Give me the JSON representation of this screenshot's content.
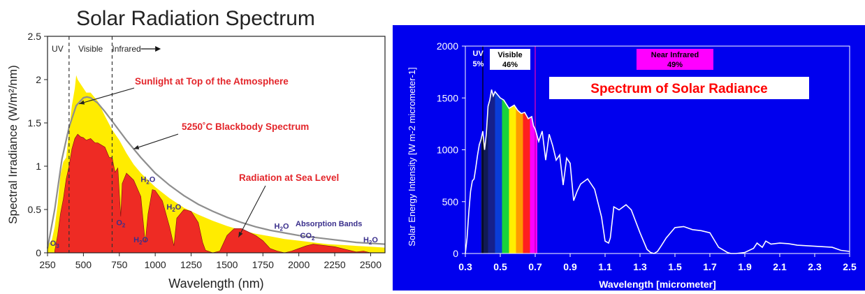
{
  "chart_data": [
    {
      "type": "area",
      "title": "Solar Radiation Spectrum",
      "xlabel": "Wavelength (nm)",
      "ylabel": "Spectral Irradiance (W/m²/nm)",
      "xlim": [
        250,
        2600
      ],
      "ylim": [
        0,
        2.5
      ],
      "xticks": [
        250,
        500,
        750,
        1000,
        1250,
        1500,
        1750,
        2000,
        2250,
        2500
      ],
      "yticks": [
        0,
        0.5,
        1,
        1.5,
        2,
        2.5
      ],
      "ytick_labels": [
        "0",
        "0.5",
        "1",
        "1.5",
        "2",
        "2.5"
      ],
      "regions": [
        {
          "label": "UV",
          "x_start": 250,
          "x_end": 400
        },
        {
          "label": "Visible",
          "x_start": 400,
          "x_end": 700
        },
        {
          "label": "Infrared",
          "x_start": 700,
          "x_end": 900
        }
      ],
      "boundaries": [
        400,
        700
      ],
      "series": [
        {
          "color": "#ffec00",
          "x": [
            250,
            280,
            300,
            320,
            340,
            360,
            380,
            400,
            420,
            440,
            450,
            460,
            480,
            500,
            520,
            550,
            600,
            650,
            700,
            750,
            800,
            850,
            900,
            1000,
            1100,
            1200,
            1300,
            1400,
            1500,
            1600,
            1700,
            1800,
            1900,
            2000,
            2100,
            2200,
            2300,
            2400,
            2500,
            2600
          ],
          "y": [
            0.08,
            0.15,
            0.3,
            0.55,
            0.9,
            1.05,
            1.1,
            1.4,
            1.7,
            1.9,
            2.05,
            2.0,
            1.95,
            1.9,
            1.85,
            1.85,
            1.75,
            1.58,
            1.42,
            1.3,
            1.15,
            1.02,
            0.92,
            0.76,
            0.63,
            0.52,
            0.44,
            0.37,
            0.31,
            0.26,
            0.22,
            0.19,
            0.16,
            0.14,
            0.12,
            0.1,
            0.09,
            0.08,
            0.07,
            0.06
          ]
        },
        {
          "color": "#8e8e8e",
          "x": [
            250,
            300,
            350,
            400,
            450,
            500,
            525,
            550,
            600,
            650,
            700,
            800,
            900,
            1000,
            1100,
            1200,
            1300,
            1400,
            1500,
            1600,
            1700,
            1800,
            1900,
            2000,
            2100,
            2200,
            2300,
            2400,
            2500,
            2600
          ],
          "y": [
            0.05,
            0.5,
            1.08,
            1.45,
            1.7,
            1.79,
            1.8,
            1.79,
            1.73,
            1.63,
            1.52,
            1.3,
            1.1,
            0.92,
            0.78,
            0.66,
            0.56,
            0.48,
            0.41,
            0.35,
            0.3,
            0.26,
            0.23,
            0.2,
            0.18,
            0.16,
            0.14,
            0.12,
            0.11,
            0.1
          ]
        },
        {
          "color": "#ee2b24",
          "x": [
            300,
            320,
            340,
            360,
            380,
            400,
            420,
            440,
            460,
            480,
            500,
            520,
            550,
            580,
            600,
            650,
            680,
            700,
            720,
            740,
            760,
            770,
            800,
            850,
            900,
            930,
            950,
            980,
            1000,
            1050,
            1100,
            1130,
            1150,
            1200,
            1250,
            1300,
            1330,
            1350,
            1400,
            1450,
            1500,
            1550,
            1600,
            1650,
            1700,
            1750,
            1800,
            1850,
            1900,
            1950,
            2000,
            2050,
            2100,
            2150,
            2200,
            2250,
            2300,
            2350,
            2400,
            2450,
            2500
          ],
          "y": [
            0.02,
            0.2,
            0.45,
            0.62,
            0.85,
            1.0,
            1.2,
            1.32,
            1.37,
            1.34,
            1.33,
            1.3,
            1.32,
            1.27,
            1.27,
            1.22,
            1.1,
            1.1,
            0.93,
            0.98,
            0.42,
            0.8,
            0.92,
            0.84,
            0.65,
            0.12,
            0.45,
            0.73,
            0.72,
            0.6,
            0.3,
            0.08,
            0.4,
            0.5,
            0.48,
            0.35,
            0.12,
            0.03,
            0.0,
            0.02,
            0.2,
            0.28,
            0.28,
            0.24,
            0.2,
            0.14,
            0.05,
            0.02,
            0.0,
            0.02,
            0.05,
            0.08,
            0.1,
            0.09,
            0.08,
            0.07,
            0.05,
            0.03,
            0.01,
            0.02,
            0.0
          ]
        }
      ],
      "annotations": [
        {
          "text": "Sunlight at Top of the Atmosphere",
          "color": "#e3262b"
        },
        {
          "text": "5250˚C Blackbody Spectrum",
          "color": "#e3262b"
        },
        {
          "text": "Radiation at Sea Level",
          "color": "#e3262b"
        },
        {
          "text": "Absorption Bands",
          "color": "#3a2f8c"
        }
      ],
      "absorption_labels": [
        {
          "main": "O",
          "sub": "3",
          "x": 300,
          "y": 0.08
        },
        {
          "main": "O",
          "sub": "2",
          "x": 760,
          "y": 0.32
        },
        {
          "main": "H",
          "sub": "2",
          "tail": "O",
          "x": 900,
          "y": 0.12
        },
        {
          "main": "H",
          "sub": "2",
          "tail": "O",
          "x": 950,
          "y": 0.82
        },
        {
          "main": "H",
          "sub": "2",
          "tail": "O",
          "x": 1130,
          "y": 0.5
        },
        {
          "main": "H",
          "sub": "2",
          "tail": "O",
          "x": 1880,
          "y": 0.28
        },
        {
          "main": "CO",
          "sub": "2",
          "x": 2060,
          "y": 0.17
        },
        {
          "main": "H",
          "sub": "2",
          "tail": "O",
          "x": 2500,
          "y": 0.12
        }
      ]
    },
    {
      "type": "line",
      "title": "Spectrum of Solar Radiance",
      "xlabel": "Wavelength [micrometer]",
      "ylabel": "Solar Energy Intensity [W m-2 micrometer-1]",
      "xlim": [
        0.3,
        2.5
      ],
      "ylim": [
        0,
        2000
      ],
      "xticks": [
        "0.3",
        "0.5",
        "0.7",
        "0.9",
        "1.1",
        "1.3",
        "1.5",
        "1.7",
        "1.9",
        "2.1",
        "2.3",
        "2.5"
      ],
      "yticks": [
        0,
        500,
        1000,
        1500,
        2000
      ],
      "bands": [
        {
          "label": "UV",
          "percent": "5%"
        },
        {
          "label": "Visible",
          "percent": "46%"
        },
        {
          "label": "Near Infrared",
          "percent": "49%"
        }
      ],
      "visible_colors": [
        "#111a55",
        "#16208c",
        "#0a3cd8",
        "#19d33c",
        "#ffee00",
        "#ff9a00",
        "#ff1f1f",
        "#ff00ff"
      ],
      "band_boundaries": [
        0.4,
        0.7
      ],
      "series": [
        {
          "color": "#ffffff",
          "x": [
            0.3,
            0.31,
            0.32,
            0.33,
            0.34,
            0.35,
            0.36,
            0.37,
            0.38,
            0.39,
            0.4,
            0.41,
            0.42,
            0.43,
            0.44,
            0.45,
            0.46,
            0.47,
            0.48,
            0.5,
            0.52,
            0.55,
            0.58,
            0.6,
            0.62,
            0.64,
            0.66,
            0.68,
            0.69,
            0.7,
            0.72,
            0.74,
            0.76,
            0.78,
            0.8,
            0.82,
            0.84,
            0.86,
            0.88,
            0.9,
            0.92,
            0.94,
            0.96,
            1.0,
            1.04,
            1.08,
            1.1,
            1.12,
            1.13,
            1.15,
            1.18,
            1.22,
            1.25,
            1.3,
            1.34,
            1.36,
            1.38,
            1.4,
            1.42,
            1.45,
            1.5,
            1.55,
            1.6,
            1.65,
            1.7,
            1.75,
            1.8,
            1.82,
            1.85,
            1.9,
            1.95,
            1.97,
            2.0,
            2.02,
            2.05,
            2.1,
            2.15,
            2.2,
            2.3,
            2.4,
            2.45,
            2.5
          ],
          "y": [
            0,
            150,
            400,
            600,
            700,
            720,
            830,
            950,
            1050,
            1100,
            1180,
            1000,
            1150,
            1420,
            1480,
            1580,
            1520,
            1560,
            1540,
            1500,
            1480,
            1400,
            1430,
            1380,
            1350,
            1360,
            1300,
            1320,
            1230,
            1200,
            1080,
            1180,
            900,
            1150,
            1040,
            900,
            950,
            660,
            920,
            870,
            510,
            600,
            670,
            720,
            620,
            350,
            120,
            100,
            150,
            450,
            420,
            470,
            420,
            200,
            40,
            10,
            0,
            20,
            70,
            150,
            250,
            260,
            230,
            220,
            200,
            60,
            10,
            0,
            0,
            10,
            50,
            100,
            60,
            120,
            90,
            100,
            95,
            80,
            70,
            60,
            30,
            20
          ]
        }
      ],
      "callout": "Spectrum of Solar Radiance"
    }
  ]
}
